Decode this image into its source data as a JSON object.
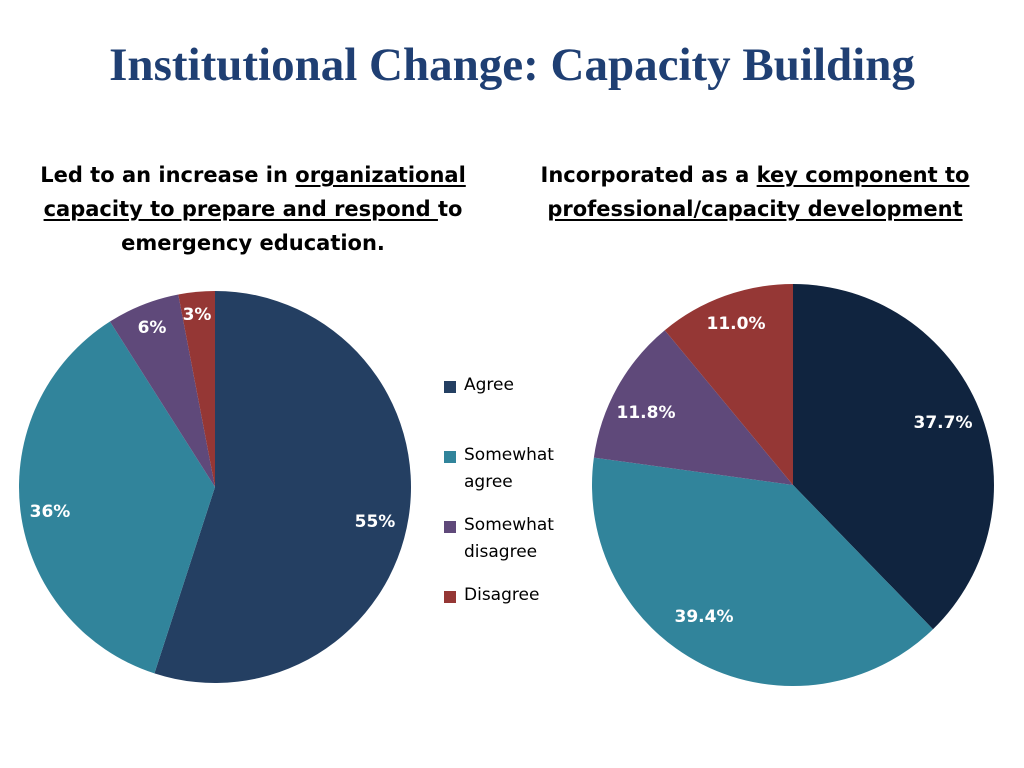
{
  "slide": {
    "title": "Institutional Change: Capacity Building"
  },
  "chart_data": [
    {
      "type": "pie",
      "title_parts": [
        {
          "text": "Led to an increase in ",
          "underline": false
        },
        {
          "text": "organizational capacity to prepare and respond ",
          "underline": true
        },
        {
          "text": "to emergency education.",
          "underline": false
        }
      ],
      "categories": [
        "Agree",
        "Somewhat agree",
        "Somewhat disagree",
        "Disagree"
      ],
      "values": [
        55,
        36,
        6,
        3
      ],
      "labels": [
        "55%",
        "36%",
        "6%",
        "3%"
      ],
      "colors": [
        "#243f62",
        "#31849b",
        "#5f497a",
        "#953735"
      ]
    },
    {
      "type": "pie",
      "title_parts": [
        {
          "text": "Incorporated as a ",
          "underline": false
        },
        {
          "text": "key component to professional/capacity development",
          "underline": true
        }
      ],
      "categories": [
        "Agree",
        "Somewhat agree",
        "Somewhat disagree",
        "Disagree"
      ],
      "values": [
        37.7,
        39.4,
        11.8,
        11.0
      ],
      "labels": [
        "37.7%",
        "39.4%",
        "11.8%",
        "11.0%"
      ],
      "colors": [
        "#10243f",
        "#31849b",
        "#5f497a",
        "#953735"
      ]
    }
  ],
  "legend": {
    "placement": "center",
    "items": [
      {
        "label": "Agree",
        "color": "#243f62"
      },
      {
        "label": "Somewhat agree",
        "color": "#31849b"
      },
      {
        "label": "Somewhat disagree",
        "color": "#5f497a"
      },
      {
        "label": "Disagree",
        "color": "#953735"
      }
    ]
  }
}
